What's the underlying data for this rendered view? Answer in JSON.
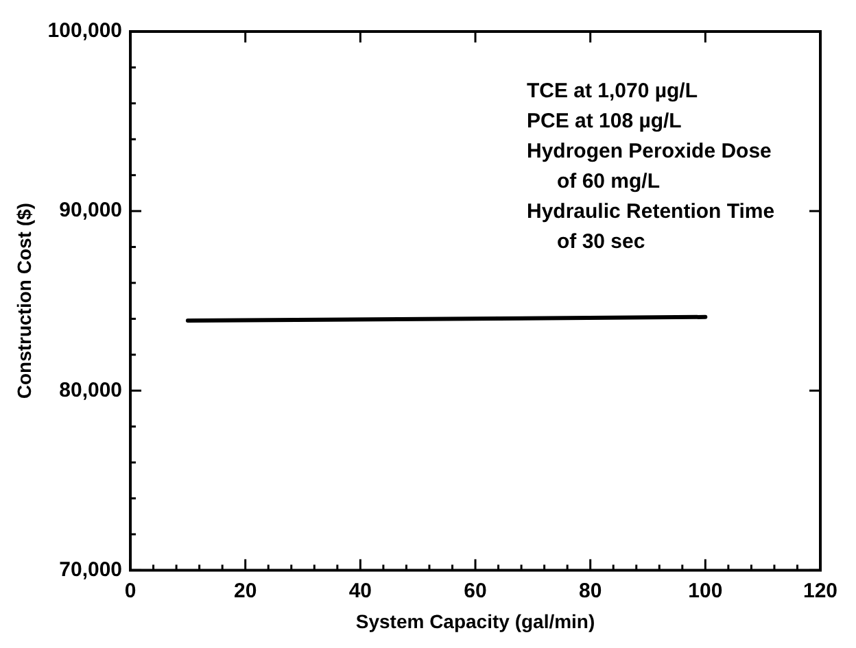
{
  "chart_data": {
    "type": "line",
    "xlabel": "System Capacity (gal/min)",
    "ylabel": "Construction Cost ($)",
    "x": [
      10,
      100
    ],
    "series": [
      {
        "color": "#000000",
        "values": [
          83900,
          84100
        ]
      }
    ],
    "xlim": [
      0,
      120
    ],
    "ylim": [
      70000,
      100000
    ],
    "xticks": [
      0,
      {
        "value": 4,
        "label": null
      },
      {
        "value": 8,
        "label": null
      },
      {
        "value": 12,
        "label": null
      },
      {
        "value": 16,
        "label": null
      },
      20,
      {
        "value": 24,
        "label": null
      },
      {
        "value": 28,
        "label": null
      },
      {
        "value": 32,
        "label": null
      },
      {
        "value": 36,
        "label": null
      },
      40,
      {
        "value": 44,
        "label": null
      },
      {
        "value": 48,
        "label": null
      },
      {
        "value": 52,
        "label": null
      },
      {
        "value": 56,
        "label": null
      },
      60,
      {
        "value": 64,
        "label": null
      },
      {
        "value": 68,
        "label": null
      },
      {
        "value": 72,
        "label": null
      },
      {
        "value": 76,
        "label": null
      },
      80,
      {
        "value": 84,
        "label": null
      },
      {
        "value": 88,
        "label": null
      },
      {
        "value": 92,
        "label": null
      },
      {
        "value": 96,
        "label": null
      },
      100,
      {
        "value": 104,
        "label": null
      },
      {
        "value": 108,
        "label": null
      },
      {
        "value": 112,
        "label": null
      },
      {
        "value": 116,
        "label": null
      },
      120
    ],
    "yticks": [
      {
        "value": 70000,
        "label": "70,000"
      },
      {
        "value": 72000,
        "label": null
      },
      {
        "value": 74000,
        "label": null
      },
      {
        "value": 76000,
        "label": null
      },
      {
        "value": 78000,
        "label": null
      },
      {
        "value": 80000,
        "label": "80,000"
      },
      {
        "value": 82000,
        "label": null
      },
      {
        "value": 84000,
        "label": null
      },
      {
        "value": 86000,
        "label": null
      },
      {
        "value": 88000,
        "label": null
      },
      {
        "value": 90000,
        "label": "90,000"
      },
      {
        "value": 92000,
        "label": null
      },
      {
        "value": 94000,
        "label": null
      },
      {
        "value": 96000,
        "label": null
      },
      {
        "value": 98000,
        "label": null
      },
      {
        "value": 100000,
        "label": "100,000"
      }
    ],
    "annotations": [
      "TCE at 1,070 µg/L",
      "PCE at 108 µg/L",
      "Hydrogen Peroxide Dose\nof 60 mg/L",
      "Hydraulic Retention Time\nof 30 sec"
    ],
    "marker": "none",
    "line_style": "solid",
    "legend": false,
    "grid": false
  }
}
